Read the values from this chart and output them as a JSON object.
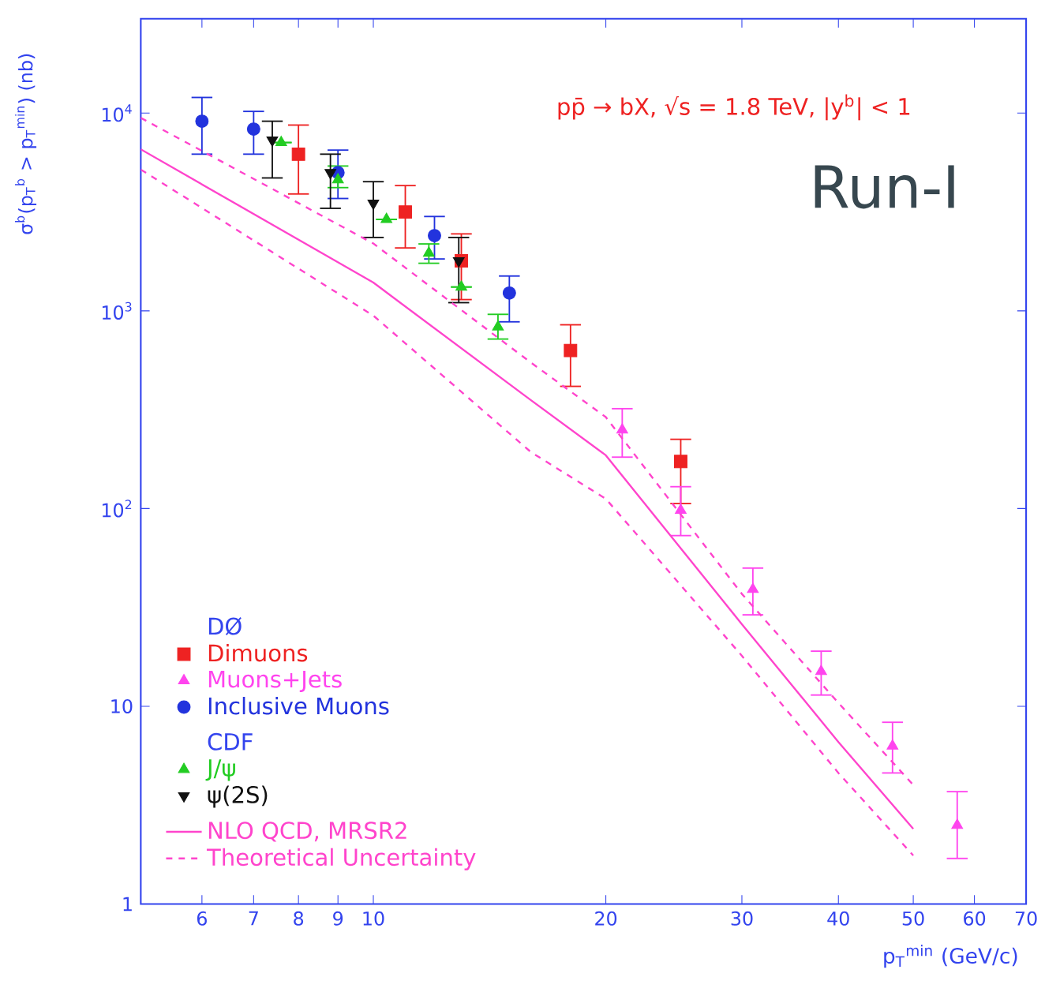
{
  "chart_data": {
    "type": "scatter",
    "title": "pp̄ → bX,  √s = 1.8 TeV,  |y$^{b}$| < 1",
    "xlabel": "p$_{T}$$^{min}$ (GeV/c)",
    "ylabel": "σ$^{b}$(p$_{T}$$^{b}$ > p$_{T}$$^{min}$) (nb)",
    "annotations": [
      "Run-I",
      "DØ",
      "CDF"
    ],
    "log": "xy",
    "xlim": [
      5,
      70
    ],
    "ylim": [
      1,
      30000
    ],
    "xticks": [
      6,
      7,
      8,
      9,
      10,
      20,
      30,
      40,
      50,
      60,
      70
    ],
    "yticks": [
      1,
      10,
      {
        "value": 100,
        "label": "10$^{2}$"
      },
      {
        "value": 1000,
        "label": "10$^{3}$"
      },
      {
        "value": 10000,
        "label": "10$^{4}$"
      }
    ],
    "legend": "bottom left",
    "series": [
      {
        "name": "Dimuons",
        "color": "#ee2222",
        "marker": "square",
        "x": [
          8,
          11,
          13,
          18,
          25
        ],
        "values": [
          6200,
          3160,
          1790,
          630,
          173
        ],
        "errors": [
          [
            3900,
            8700
          ],
          [
            2080,
            4300
          ],
          [
            1140,
            2450
          ],
          [
            415,
            850
          ],
          [
            106,
            224
          ]
        ]
      },
      {
        "name": "Muons+Jets",
        "color": "#ff44ee",
        "marker": "triangle",
        "x": [
          21,
          25,
          31,
          38,
          47,
          57
        ],
        "values": [
          250,
          98,
          39,
          15,
          6.3,
          2.5
        ],
        "errors": [
          [
            182,
            320
          ],
          [
            73,
            129
          ],
          [
            29,
            50
          ],
          [
            11.4,
            19
          ],
          [
            4.6,
            8.3
          ],
          [
            1.7,
            3.7
          ]
        ]
      },
      {
        "name": "Inclusive Muons",
        "color": "#2233dd",
        "marker": "circle",
        "x": [
          6,
          7,
          9,
          12,
          15
        ],
        "values": [
          9100,
          8300,
          5000,
          2400,
          1230
        ],
        "errors": [
          [
            6200,
            12000
          ],
          [
            6200,
            10200
          ],
          [
            3700,
            6500
          ],
          [
            1830,
            3000
          ],
          [
            880,
            1500
          ]
        ]
      },
      {
        "name": "J/ψ",
        "color": "#22cc22",
        "marker": "triangle",
        "x": [
          7.6,
          9,
          10.4,
          11.8,
          13,
          14.5
        ],
        "values": [
          7100,
          4600,
          2900,
          1960,
          1320,
          830
        ],
        "errors": [
          null,
          [
            4200,
            5400
          ],
          null,
          [
            1740,
            2180
          ],
          null,
          [
            720,
            960
          ]
        ]
      },
      {
        "name": "ψ(2S)",
        "color": "#111111",
        "marker": "triangle down",
        "x": [
          7.4,
          8.8,
          10,
          12.9
        ],
        "values": [
          7300,
          5000,
          3500,
          1790
        ],
        "errors": [
          [
            4700,
            9100
          ],
          [
            3300,
            6200
          ],
          [
            2350,
            4500
          ],
          [
            1100,
            2350
          ]
        ]
      },
      {
        "name": "NLO QCD, MRSR2",
        "type": "line",
        "color": "#ff44cc",
        "marker": "none",
        "line_style": "solid",
        "x": [
          5,
          10,
          16,
          20,
          30,
          40,
          50
        ],
        "values": [
          6560,
          1390,
          353,
          186,
          26,
          6.6,
          2.4
        ]
      },
      {
        "name": "Theoretical Uncertainty",
        "type": "line",
        "color": "#ff44cc",
        "marker": "none",
        "line_style": "dashed",
        "x": [
          5,
          10,
          16,
          20,
          30,
          40,
          50
        ],
        "values": [
          9460,
          2190,
          547,
          290,
          37,
          10.4,
          4.0
        ]
      },
      {
        "type": "line",
        "color": "#ff44cc",
        "marker": "none",
        "line_style": "dashed",
        "x": [
          5,
          10,
          16,
          20,
          30,
          40,
          50
        ],
        "values": [
          5180,
          946,
          193,
          112,
          18,
          4.6,
          1.76
        ]
      }
    ]
  }
}
